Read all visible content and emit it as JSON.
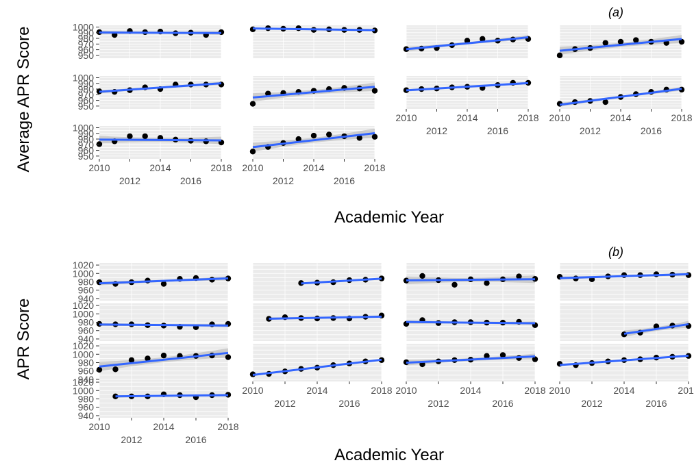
{
  "colors": {
    "panel_bg": "#ebebeb",
    "grid": "#ffffff",
    "point": "#000000",
    "line": "#3366ff",
    "ribbon": "#b5b5b5",
    "text": "#4d4d4d"
  },
  "figure_a": {
    "tag": "(a)",
    "ylabel": "Average APR Score",
    "xlabel": "Academic Year",
    "x_ticks_top": [
      "2010",
      "2014",
      "2018"
    ],
    "x_ticks_bottom": [
      "2012",
      "2016"
    ],
    "y_ticks": [
      "1000",
      "990",
      "980",
      "970",
      "960",
      "950"
    ]
  },
  "figure_b": {
    "tag": "(b)",
    "ylabel": "APR Score",
    "xlabel": "Academic Year",
    "x_ticks_top": [
      "2010",
      "2014",
      "2018"
    ],
    "x_ticks_bottom": [
      "2012",
      "2016"
    ],
    "y_ticks": [
      "1020",
      "1000",
      "980",
      "960",
      "940"
    ]
  },
  "chart_data": [
    {
      "type": "scatter",
      "title": "",
      "xlabel": "Academic Year",
      "ylabel": "Average APR Score",
      "xlim": [
        2010,
        2018
      ],
      "ylim": [
        945,
        1003
      ],
      "trend": "linear fit with confidence band",
      "panels": [
        {
          "row": 0,
          "col": 0,
          "x": [
            2010,
            2011,
            2012,
            2013,
            2014,
            2015,
            2016,
            2017,
            2018
          ],
          "y": [
            991,
            986,
            993,
            991,
            992,
            989,
            990,
            986,
            991
          ]
        },
        {
          "row": 0,
          "col": 1,
          "x": [
            2010,
            2011,
            2012,
            2013,
            2014,
            2015,
            2016,
            2017,
            2018
          ],
          "y": [
            996,
            998,
            997,
            998,
            995,
            996,
            995,
            995,
            994
          ]
        },
        {
          "row": 0,
          "col": 2,
          "x": [
            2010,
            2011,
            2012,
            2013,
            2014,
            2015,
            2016,
            2017,
            2018
          ],
          "y": [
            961,
            962,
            963,
            968,
            976,
            979,
            976,
            978,
            979
          ]
        },
        {
          "row": 0,
          "col": 3,
          "x": [
            2010,
            2011,
            2012,
            2013,
            2014,
            2015,
            2016,
            2017,
            2018
          ],
          "y": [
            950,
            961,
            963,
            972,
            974,
            977,
            974,
            972,
            974
          ]
        },
        {
          "row": 1,
          "col": 0,
          "x": [
            2010,
            2011,
            2012,
            2013,
            2014,
            2015,
            2016,
            2017,
            2018
          ],
          "y": [
            976,
            975,
            978,
            983,
            980,
            988,
            988,
            988,
            988
          ]
        },
        {
          "row": 1,
          "col": 1,
          "x": [
            2010,
            2011,
            2012,
            2013,
            2014,
            2015,
            2016,
            2017,
            2018
          ],
          "y": [
            954,
            972,
            973,
            975,
            977,
            980,
            982,
            981,
            977
          ]
        },
        {
          "row": 1,
          "col": 2,
          "x": [
            2010,
            2011,
            2012,
            2013,
            2014,
            2015,
            2016,
            2017,
            2018
          ],
          "y": [
            978,
            980,
            981,
            983,
            984,
            982,
            987,
            991,
            991
          ]
        },
        {
          "row": 1,
          "col": 3,
          "x": [
            2010,
            2011,
            2012,
            2013,
            2014,
            2015,
            2016,
            2017,
            2018
          ],
          "y": [
            954,
            957,
            959,
            957,
            966,
            971,
            975,
            979,
            979
          ]
        },
        {
          "row": 2,
          "col": 0,
          "x": [
            2010,
            2011,
            2012,
            2013,
            2014,
            2015,
            2016,
            2017,
            2018
          ],
          "y": [
            971,
            976,
            985,
            985,
            982,
            979,
            977,
            976,
            974
          ]
        },
        {
          "row": 2,
          "col": 1,
          "x": [
            2010,
            2011,
            2012,
            2013,
            2014,
            2015,
            2016,
            2017,
            2018
          ],
          "y": [
            958,
            966,
            973,
            980,
            986,
            988,
            985,
            982,
            984
          ]
        }
      ]
    },
    {
      "type": "scatter",
      "title": "",
      "xlabel": "Academic Year",
      "ylabel": "APR Score",
      "xlim": [
        2010,
        2018
      ],
      "ylim": [
        935,
        1025
      ],
      "trend": "linear fit with confidence band",
      "panels": [
        {
          "row": 0,
          "col": 0,
          "x": [
            2010,
            2011,
            2012,
            2013,
            2014,
            2015,
            2016,
            2017,
            2018
          ],
          "y": [
            979,
            975,
            979,
            983,
            975,
            987,
            989,
            985,
            988
          ]
        },
        {
          "row": 0,
          "col": 1,
          "x": [
            2013,
            2014,
            2015,
            2016,
            2017,
            2018
          ],
          "y": [
            977,
            978,
            979,
            984,
            985,
            988
          ]
        },
        {
          "row": 0,
          "col": 2,
          "x": [
            2010,
            2011,
            2012,
            2013,
            2014,
            2015,
            2016,
            2017,
            2018
          ],
          "y": [
            983,
            994,
            984,
            973,
            986,
            977,
            986,
            993,
            987
          ]
        },
        {
          "row": 0,
          "col": 3,
          "x": [
            2010,
            2011,
            2012,
            2013,
            2014,
            2015,
            2016,
            2017,
            2018
          ],
          "y": [
            992,
            988,
            986,
            993,
            996,
            996,
            998,
            997,
            996
          ]
        },
        {
          "row": 1,
          "col": 0,
          "x": [
            2010,
            2011,
            2012,
            2013,
            2014,
            2015,
            2016,
            2017,
            2018
          ],
          "y": [
            976,
            975,
            975,
            973,
            972,
            969,
            968,
            975,
            976
          ]
        },
        {
          "row": 1,
          "col": 1,
          "x": [
            2011,
            2012,
            2013,
            2014,
            2015,
            2016,
            2017,
            2018
          ],
          "y": [
            988,
            992,
            990,
            989,
            990,
            989,
            993,
            996
          ]
        },
        {
          "row": 1,
          "col": 2,
          "x": [
            2010,
            2011,
            2012,
            2013,
            2014,
            2015,
            2016,
            2017,
            2018
          ],
          "y": [
            976,
            985,
            978,
            980,
            980,
            979,
            979,
            981,
            973
          ]
        },
        {
          "row": 1,
          "col": 3,
          "x": [
            2014,
            2015,
            2016,
            2017,
            2018
          ],
          "y": [
            951,
            955,
            970,
            972,
            971
          ]
        },
        {
          "row": 2,
          "col": 0,
          "x": [
            2010,
            2011,
            2012,
            2013,
            2014,
            2015,
            2016,
            2017,
            2018
          ],
          "y": [
            963,
            964,
            986,
            990,
            997,
            996,
            996,
            997,
            993
          ]
        },
        {
          "row": 2,
          "col": 1,
          "x": [
            2010,
            2011,
            2012,
            2013,
            2014,
            2015,
            2016,
            2017,
            2018
          ],
          "y": [
            952,
            953,
            959,
            965,
            968,
            974,
            978,
            983,
            986
          ]
        },
        {
          "row": 2,
          "col": 2,
          "x": [
            2010,
            2011,
            2012,
            2013,
            2014,
            2015,
            2016,
            2017,
            2018
          ],
          "y": [
            981,
            976,
            983,
            986,
            987,
            996,
            998,
            991,
            988
          ]
        },
        {
          "row": 2,
          "col": 3,
          "x": [
            2010,
            2011,
            2012,
            2013,
            2014,
            2015,
            2016,
            2017,
            2018
          ],
          "y": [
            977,
            974,
            979,
            983,
            986,
            988,
            992,
            994,
            996
          ]
        },
        {
          "row": 3,
          "col": 0,
          "x": [
            2011,
            2012,
            2013,
            2014,
            2015,
            2016,
            2017,
            2018
          ],
          "y": [
            986,
            986,
            986,
            991,
            989,
            984,
            989,
            990
          ]
        }
      ]
    }
  ]
}
